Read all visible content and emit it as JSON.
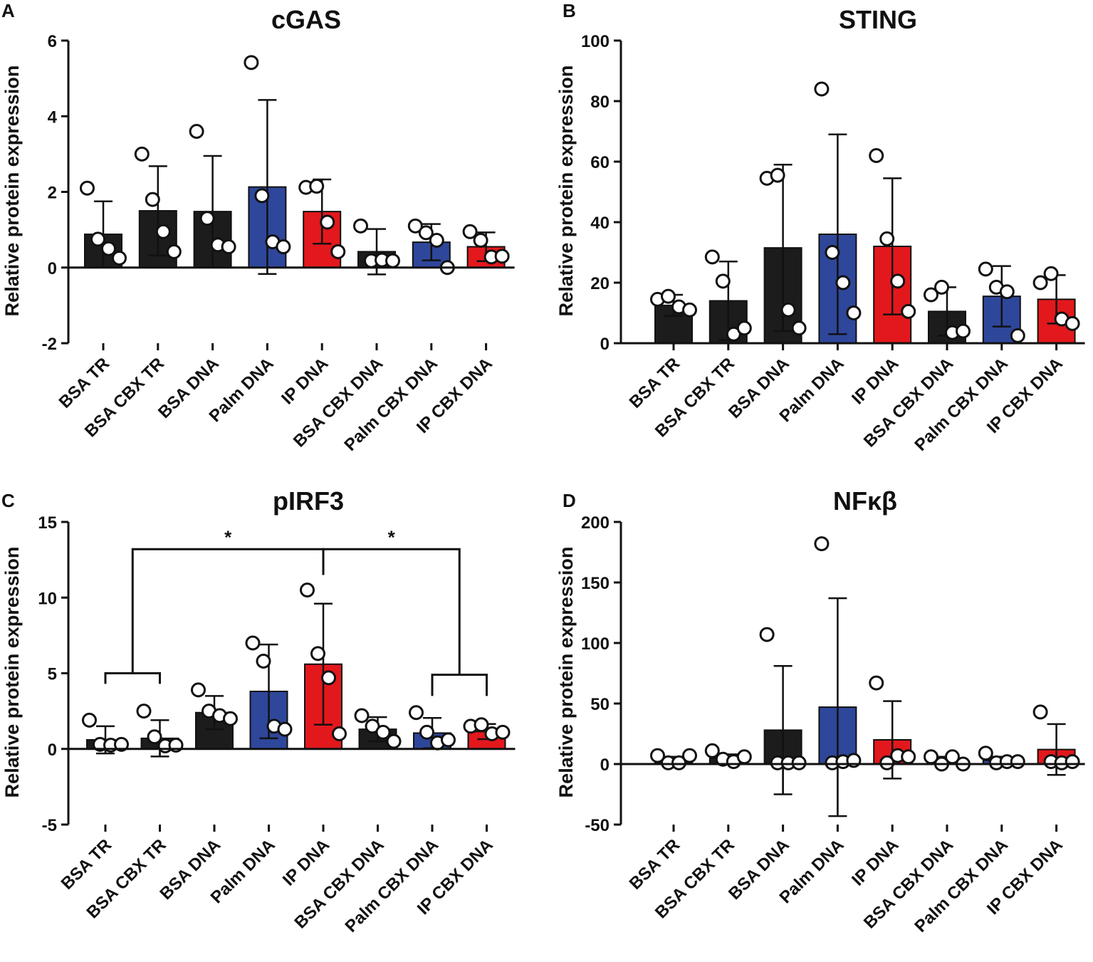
{
  "colors": {
    "black": "#1c1c1c",
    "blue": "#2e479b",
    "red": "#e3181c"
  },
  "chart_data": [
    {
      "panel": "A",
      "type": "bar",
      "title": "cGAS",
      "ylabel": "Relative protein expression",
      "xlabel": "",
      "ylim": [
        -2,
        6
      ],
      "yticks": [
        "-2",
        "0",
        "2",
        "4",
        "6"
      ],
      "categories": [
        "BSA TR",
        "BSA CBX TR",
        "BSA DNA",
        "Palm DNA",
        "IP DNA",
        "BSA CBX DNA",
        "Palm CBX DNA",
        "IP CBX DNA"
      ],
      "bar_colors": [
        "black",
        "black",
        "black",
        "blue",
        "red",
        "black",
        "blue",
        "red"
      ],
      "values": [
        0.88,
        1.5,
        1.48,
        2.13,
        1.48,
        0.42,
        0.67,
        0.55
      ],
      "error_sd": [
        0.87,
        1.18,
        1.47,
        2.3,
        0.85,
        0.6,
        0.48,
        0.38
      ],
      "points": [
        [
          2.1,
          0.75,
          0.5,
          0.25
        ],
        [
          3.0,
          1.8,
          0.95,
          0.42
        ],
        [
          3.6,
          1.3,
          0.6,
          0.55
        ],
        [
          5.42,
          1.9,
          0.68,
          0.55
        ],
        [
          2.12,
          2.15,
          1.2,
          0.42
        ],
        [
          1.1,
          0.18,
          0.2,
          0.18
        ],
        [
          1.1,
          0.92,
          0.72,
          0.0
        ],
        [
          0.95,
          0.72,
          0.28,
          0.3
        ]
      ],
      "significance": []
    },
    {
      "panel": "B",
      "type": "bar",
      "title": "STING",
      "ylabel": "Relative protein expression",
      "xlabel": "",
      "ylim": [
        0,
        100
      ],
      "yticks": [
        "0",
        "20",
        "40",
        "60",
        "80",
        "100"
      ],
      "categories": [
        "BSA TR",
        "BSA CBX TR",
        "BSA DNA",
        "Palm DNA",
        "IP DNA",
        "BSA CBX DNA",
        "Palm CBX DNA",
        "IP CBX DNA"
      ],
      "bar_colors": [
        "black",
        "black",
        "black",
        "blue",
        "red",
        "black",
        "blue",
        "red"
      ],
      "values": [
        12.5,
        14,
        31.5,
        36,
        32,
        10.5,
        15.5,
        14.5
      ],
      "error_sd": [
        3.5,
        13,
        27.5,
        33,
        22.5,
        8,
        10,
        8
      ],
      "points": [
        [
          14.5,
          15.5,
          12,
          11
        ],
        [
          28.5,
          20.5,
          3,
          5
        ],
        [
          54.5,
          55.5,
          11,
          5
        ],
        [
          84,
          30,
          20,
          10
        ],
        [
          62,
          34.5,
          20.5,
          10.5
        ],
        [
          16,
          18.5,
          3.5,
          4
        ],
        [
          24.5,
          18.5,
          17,
          2.5
        ],
        [
          20,
          23,
          8,
          6.5
        ]
      ],
      "significance": []
    },
    {
      "panel": "C",
      "type": "bar",
      "title": "pIRF3",
      "ylabel": "Relative protein expression",
      "xlabel": "",
      "ylim": [
        -5,
        15
      ],
      "yticks": [
        "-5",
        "0",
        "5",
        "10",
        "15"
      ],
      "categories": [
        "BSA TR",
        "BSA CBX TR",
        "BSA DNA",
        "Palm DNA",
        "IP DNA",
        "BSA CBX DNA",
        "Palm CBX DNA",
        "IP CBX DNA"
      ],
      "bar_colors": [
        "black",
        "black",
        "black",
        "blue",
        "red",
        "black",
        "blue",
        "red"
      ],
      "values": [
        0.6,
        0.7,
        2.4,
        3.8,
        5.6,
        1.3,
        1.05,
        1.15
      ],
      "error_sd": [
        0.9,
        1.2,
        1.1,
        3.1,
        4.0,
        0.8,
        1.0,
        0.5
      ],
      "points": [
        [
          1.9,
          0.3,
          0.25,
          0.3
        ],
        [
          2.5,
          0.8,
          0.2,
          0.25
        ],
        [
          3.9,
          2.5,
          2.2,
          2.0
        ],
        [
          7.0,
          5.8,
          1.5,
          1.3
        ],
        [
          10.5,
          6.3,
          4.7,
          1.0
        ],
        [
          2.2,
          1.5,
          1.1,
          0.5
        ],
        [
          2.4,
          1.1,
          0.4,
          0.6
        ],
        [
          1.5,
          1.6,
          1.0,
          1.1
        ]
      ],
      "significance": [
        {
          "label": "*",
          "from_group": [
            0,
            1
          ],
          "to": 4
        },
        {
          "label": "*",
          "from": 4,
          "to_group": [
            6,
            7
          ]
        }
      ]
    },
    {
      "panel": "D",
      "type": "bar",
      "title": "NFκβ",
      "ylabel": "Relative protein expression",
      "xlabel": "",
      "ylim": [
        -50,
        200
      ],
      "yticks": [
        "-50",
        "0",
        "50",
        "100",
        "150",
        "200"
      ],
      "categories": [
        "BSA TR",
        "BSA CBX TR",
        "BSA DNA",
        "Palm DNA",
        "IP DNA",
        "BSA CBX DNA",
        "Palm CBX DNA",
        "IP CBX DNA"
      ],
      "bar_colors": [
        "black",
        "black",
        "black",
        "blue",
        "red",
        "black",
        "blue",
        "red"
      ],
      "values": [
        3,
        5,
        28,
        47,
        20,
        3,
        3,
        12
      ],
      "error_sd": [
        3,
        3,
        53,
        90,
        32,
        3,
        3,
        21
      ],
      "points": [
        [
          7,
          1,
          1,
          7
        ],
        [
          11,
          4,
          2,
          6
        ],
        [
          107,
          1,
          1,
          1
        ],
        [
          182,
          1,
          2,
          3
        ],
        [
          67,
          1,
          7,
          6
        ],
        [
          6,
          0,
          6,
          0
        ],
        [
          9,
          1,
          2,
          2
        ],
        [
          43,
          2,
          1,
          2
        ]
      ],
      "significance": []
    }
  ]
}
